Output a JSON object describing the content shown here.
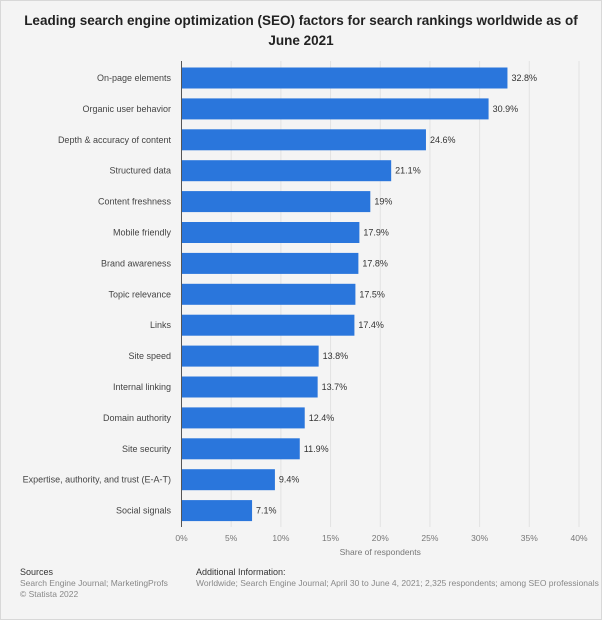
{
  "chart_data": {
    "type": "bar",
    "orientation": "horizontal",
    "title": "Leading search engine optimization (SEO) factors for search rankings worldwide as of June 2021",
    "xlabel": "Share of respondents",
    "ylabel": "",
    "xlim": [
      0,
      40
    ],
    "x_ticks": [
      "0%",
      "5%",
      "10%",
      "15%",
      "20%",
      "25%",
      "30%",
      "35%",
      "40%"
    ],
    "grid": true,
    "bar_color": "#2a76dc",
    "categories": [
      "On-page elements",
      "Organic user behavior",
      "Depth & accuracy of content",
      "Structured data",
      "Content freshness",
      "Mobile friendly",
      "Brand awareness",
      "Topic relevance",
      "Links",
      "Site speed",
      "Internal linking",
      "Domain authority",
      "Site security",
      "Expertise, authority, and trust (E-A-T)",
      "Social signals"
    ],
    "values": [
      32.8,
      30.9,
      24.6,
      21.1,
      19,
      17.9,
      17.8,
      17.5,
      17.4,
      13.8,
      13.7,
      12.4,
      11.9,
      9.4,
      7.1
    ],
    "data_labels": [
      "32.8%",
      "30.9%",
      "24.6%",
      "21.1%",
      "19%",
      "17.9%",
      "17.8%",
      "17.5%",
      "17.4%",
      "13.8%",
      "13.7%",
      "12.4%",
      "11.9%",
      "9.4%",
      "7.1%"
    ]
  },
  "footer": {
    "sources_label": "Sources",
    "sources_text": "Search Engine Journal; MarketingProfs",
    "copyright": "© Statista 2022",
    "additional_label": "Additional Information:",
    "additional_text": "Worldwide; Search Engine Journal; April 30 to June 4, 2021; 2,325 respondents; among SEO professionals"
  }
}
